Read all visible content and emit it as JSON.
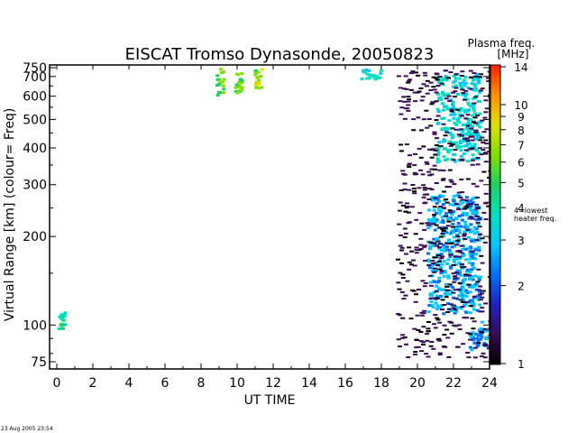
{
  "chart_data": {
    "type": "heatmap",
    "title": "EISCAT Tromso Dynasonde,  20050823",
    "xlabel": "UT TIME",
    "ylabel": "Virtual Range [km]   (colour= Freq)",
    "xlim": [
      0,
      24
    ],
    "ylim": [
      75,
      750
    ],
    "y_scale": "log",
    "xticks": [
      "0",
      "2",
      "4",
      "6",
      "8",
      "10",
      "12",
      "14",
      "16",
      "18",
      "20",
      "22",
      "24"
    ],
    "yticks": [
      "75",
      "100",
      "200",
      "300",
      "400",
      "500",
      "600",
      "700",
      "750"
    ],
    "ytick_values": [
      75,
      100,
      200,
      300,
      400,
      500,
      600,
      700,
      750
    ],
    "colorbar": {
      "title": "Plasma freq.",
      "unit": "[MHz]",
      "scale": "log",
      "range": [
        1,
        14
      ],
      "ticks": [
        "1",
        "2",
        "3",
        "4",
        "5",
        "6",
        "7",
        "8",
        "9",
        "10",
        "14"
      ],
      "tick_values": [
        1,
        2,
        3,
        4,
        5,
        6,
        7,
        8,
        9,
        10,
        14
      ],
      "marker_label": "4=lowest heater freq.",
      "marker_value": 4,
      "colors": [
        "#000000",
        "#3a0a55",
        "#2020c8",
        "#0070ff",
        "#00c8ff",
        "#00e0c0",
        "#20d060",
        "#80e000",
        "#e0e000",
        "#ff9000",
        "#ff2000"
      ]
    },
    "echo_groups": [
      {
        "x": [
          0.05,
          0.4
        ],
        "y": [
          97,
          112
        ],
        "freq": 3.8
      },
      {
        "x": [
          8.8,
          9.2
        ],
        "y": [
          610,
          750
        ],
        "freq": 5.5
      },
      {
        "x": [
          9.8,
          10.2
        ],
        "y": [
          620,
          750
        ],
        "freq": 6.0
      },
      {
        "x": [
          10.9,
          11.3
        ],
        "y": [
          640,
          750
        ],
        "freq": 6.5
      },
      {
        "x": [
          16.7,
          17.9
        ],
        "y": [
          690,
          745
        ],
        "freq": 3.3
      },
      {
        "x": [
          21.0,
          23.4
        ],
        "y": [
          360,
          720
        ],
        "freq": 3.4
      },
      {
        "x": [
          20.5,
          23.4
        ],
        "y": [
          110,
          280
        ],
        "freq": 2.6
      },
      {
        "x": [
          22.8,
          24.0
        ],
        "y": [
          83,
          104
        ],
        "freq": 2.3
      },
      {
        "x": [
          18.8,
          24.0
        ],
        "y": [
          78,
          740
        ],
        "freq": 1.2
      }
    ]
  },
  "timestamp": "23 Aug 2005 23:54"
}
